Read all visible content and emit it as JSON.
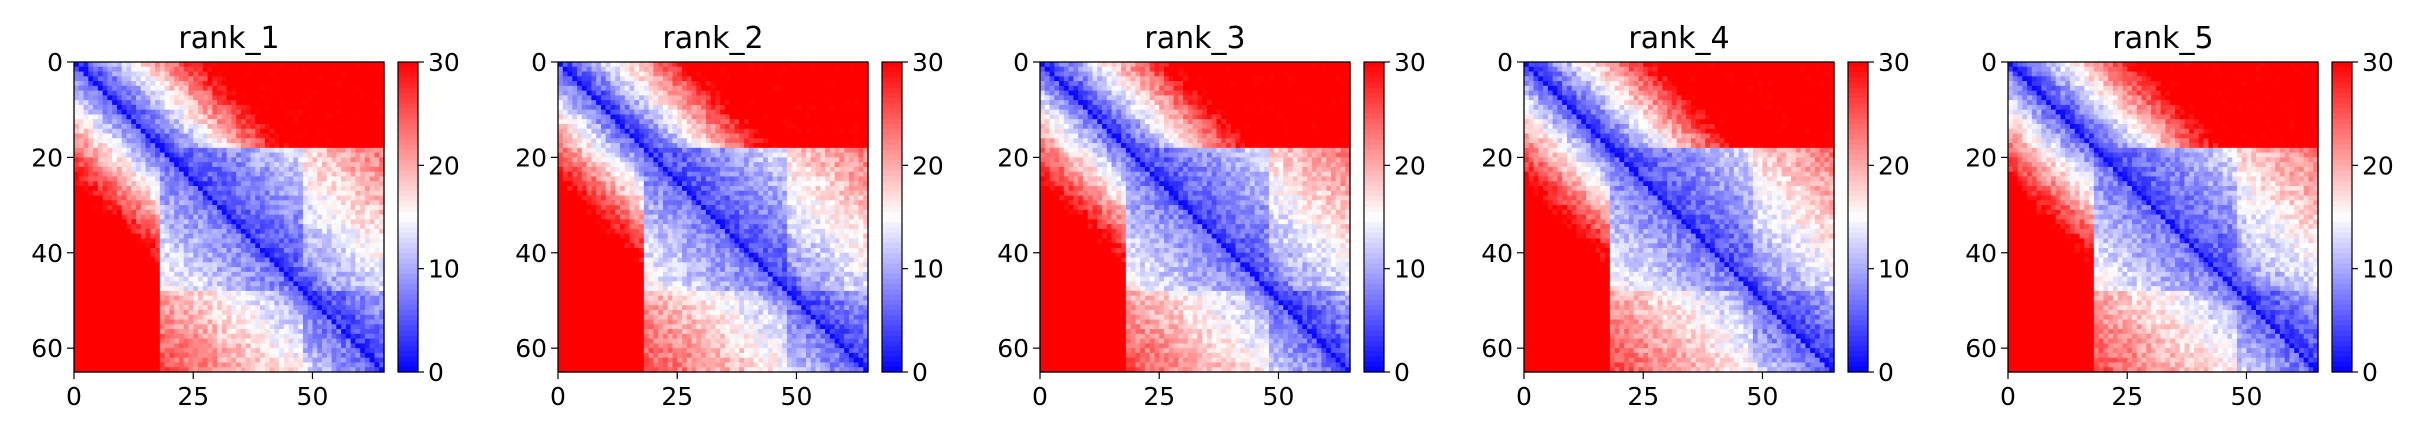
{
  "chart_data": [
    {
      "type": "heatmap",
      "title": "rank_1",
      "x_ticks": [
        0,
        25,
        50
      ],
      "y_ticks": [
        0,
        20,
        40,
        60
      ],
      "xlim": [
        0,
        65
      ],
      "ylim": [
        65,
        0
      ],
      "colorbar": {
        "ticks": [
          0,
          10,
          20,
          30
        ],
        "range": [
          0,
          30
        ],
        "colormap": "bwr"
      },
      "matrix_size": 65,
      "description_values": {
        "diagonal": 0,
        "block_1_range": [
          18,
          48
        ],
        "block_2_range": [
          48,
          65
        ]
      }
    },
    {
      "type": "heatmap",
      "title": "rank_2",
      "x_ticks": [
        0,
        25,
        50
      ],
      "y_ticks": [
        0,
        20,
        40,
        60
      ],
      "xlim": [
        0,
        65
      ],
      "ylim": [
        65,
        0
      ],
      "colorbar": {
        "ticks": [
          0,
          10,
          20,
          30
        ],
        "range": [
          0,
          30
        ],
        "colormap": "bwr"
      },
      "matrix_size": 65,
      "description_values": {
        "diagonal": 0,
        "block_1_range": [
          18,
          48
        ],
        "block_2_range": [
          48,
          65
        ]
      }
    },
    {
      "type": "heatmap",
      "title": "rank_3",
      "x_ticks": [
        0,
        25,
        50
      ],
      "y_ticks": [
        0,
        20,
        40,
        60
      ],
      "xlim": [
        0,
        65
      ],
      "ylim": [
        65,
        0
      ],
      "colorbar": {
        "ticks": [
          0,
          10,
          20,
          30
        ],
        "range": [
          0,
          30
        ],
        "colormap": "bwr"
      },
      "matrix_size": 65,
      "description_values": {
        "diagonal": 0,
        "block_1_range": [
          18,
          48
        ],
        "block_2_range": [
          48,
          65
        ]
      }
    },
    {
      "type": "heatmap",
      "title": "rank_4",
      "x_ticks": [
        0,
        25,
        50
      ],
      "y_ticks": [
        0,
        20,
        40,
        60
      ],
      "xlim": [
        0,
        65
      ],
      "ylim": [
        65,
        0
      ],
      "colorbar": {
        "ticks": [
          0,
          10,
          20,
          30
        ],
        "range": [
          0,
          30
        ],
        "colormap": "bwr"
      },
      "matrix_size": 65,
      "description_values": {
        "diagonal": 0,
        "block_1_range": [
          18,
          48
        ],
        "block_2_range": [
          48,
          65
        ]
      }
    },
    {
      "type": "heatmap",
      "title": "rank_5",
      "x_ticks": [
        0,
        25,
        50
      ],
      "y_ticks": [
        0,
        20,
        40,
        60
      ],
      "xlim": [
        0,
        65
      ],
      "ylim": [
        65,
        0
      ],
      "colorbar": {
        "ticks": [
          0,
          10,
          20,
          30
        ],
        "range": [
          0,
          30
        ],
        "colormap": "bwr"
      },
      "matrix_size": 65,
      "description_values": {
        "diagonal": 0,
        "block_1_range": [
          18,
          48
        ],
        "block_2_range": [
          48,
          65
        ]
      }
    }
  ],
  "colors": {
    "low": "#0000ff",
    "mid": "#ffffff",
    "high": "#ff0000"
  }
}
